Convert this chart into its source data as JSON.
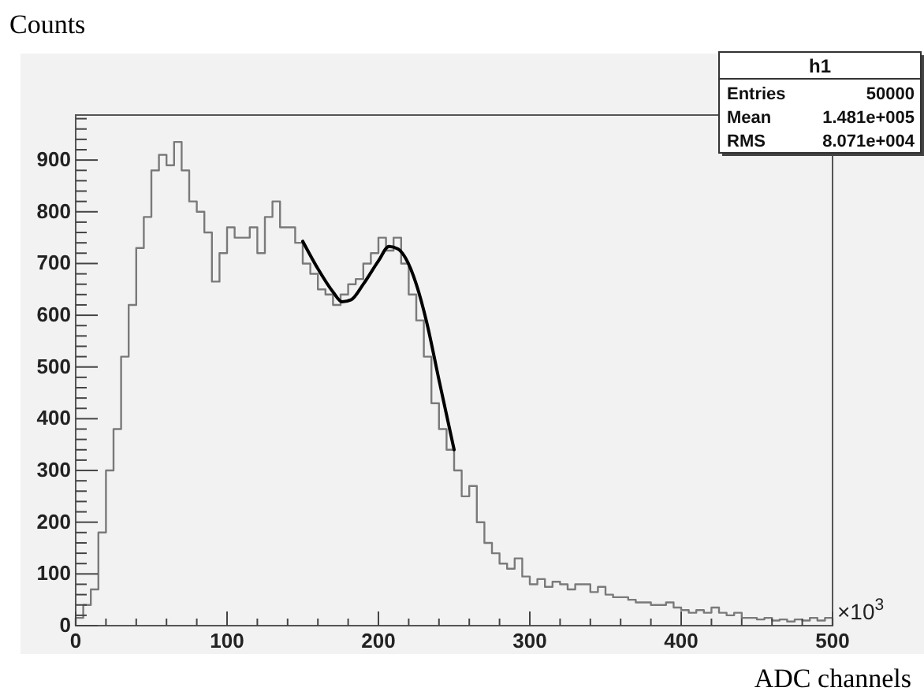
{
  "chart_data": {
    "type": "histogram",
    "ylabel": "Counts",
    "xlabel": "ADC channels",
    "bins": [
      0,
      5,
      10,
      15,
      20,
      25,
      30,
      35,
      40,
      45,
      50,
      55,
      60,
      65,
      70,
      75,
      80,
      85,
      90,
      95,
      100,
      105,
      110,
      115,
      120,
      125,
      130,
      135,
      140,
      145,
      150,
      155,
      160,
      165,
      170,
      175,
      180,
      185,
      190,
      195,
      200,
      205,
      210,
      215,
      220,
      225,
      230,
      235,
      240,
      245,
      250,
      255,
      260,
      265,
      270,
      275,
      280,
      285,
      290,
      295,
      300,
      305,
      310,
      315,
      320,
      325,
      330,
      335,
      340,
      345,
      350,
      355,
      360,
      365,
      370,
      375,
      380,
      385,
      390,
      395,
      400,
      405,
      410,
      415,
      420,
      425,
      430,
      435,
      440,
      445,
      450,
      455,
      460,
      465,
      470,
      475,
      480,
      485,
      490,
      495,
      500
    ],
    "values": [
      15,
      40,
      70,
      180,
      300,
      380,
      520,
      620,
      730,
      790,
      880,
      910,
      890,
      935,
      880,
      820,
      800,
      760,
      665,
      720,
      770,
      750,
      750,
      770,
      720,
      790,
      820,
      770,
      770,
      740,
      700,
      680,
      650,
      640,
      620,
      640,
      660,
      670,
      700,
      720,
      750,
      725,
      750,
      700,
      640,
      590,
      520,
      430,
      380,
      340,
      300,
      250,
      270,
      200,
      160,
      140,
      120,
      110,
      130,
      95,
      80,
      90,
      75,
      85,
      80,
      70,
      80,
      80,
      65,
      75,
      60,
      55,
      55,
      50,
      45,
      45,
      40,
      40,
      45,
      35,
      30,
      25,
      30,
      25,
      35,
      25,
      20,
      25,
      15,
      15,
      12,
      15,
      10,
      12,
      8,
      12,
      10,
      15,
      10,
      15
    ],
    "color": "#7a7a7a",
    "series": [
      {
        "type": "line",
        "color": "#000000",
        "x": [
          150,
          160,
          170,
          176,
          182,
          190,
          200,
          207,
          213,
          218,
          225,
          232,
          240,
          250
        ],
        "values": [
          743,
          690,
          645,
          626,
          630,
          660,
          705,
          733,
          728,
          710,
          660,
          585,
          475,
          340
        ]
      }
    ],
    "xlim": [
      0,
      500
    ],
    "xticks": [
      0,
      {
        "value": 20,
        "label": null
      },
      {
        "value": 40,
        "label": null
      },
      {
        "value": 60,
        "label": null
      },
      {
        "value": 80,
        "label": null
      },
      100,
      {
        "value": 120,
        "label": null
      },
      {
        "value": 140,
        "label": null
      },
      {
        "value": 160,
        "label": null
      },
      {
        "value": 180,
        "label": null
      },
      200,
      {
        "value": 220,
        "label": null
      },
      {
        "value": 240,
        "label": null
      },
      {
        "value": 260,
        "label": null
      },
      {
        "value": 280,
        "label": null
      },
      300,
      {
        "value": 320,
        "label": null
      },
      {
        "value": 340,
        "label": null
      },
      {
        "value": 360,
        "label": null
      },
      {
        "value": 380,
        "label": null
      },
      400,
      {
        "value": 420,
        "label": null
      },
      {
        "value": 440,
        "label": null
      },
      {
        "value": 460,
        "label": null
      },
      {
        "value": 480,
        "label": null
      },
      500
    ],
    "ylim": [
      0,
      987
    ],
    "yticks": [
      0,
      {
        "value": 20,
        "label": null
      },
      {
        "value": 40,
        "label": null
      },
      {
        "value": 60,
        "label": null
      },
      {
        "value": 80,
        "label": null
      },
      100,
      {
        "value": 120,
        "label": null
      },
      {
        "value": 140,
        "label": null
      },
      {
        "value": 160,
        "label": null
      },
      {
        "value": 180,
        "label": null
      },
      200,
      {
        "value": 220,
        "label": null
      },
      {
        "value": 240,
        "label": null
      },
      {
        "value": 260,
        "label": null
      },
      {
        "value": 280,
        "label": null
      },
      300,
      {
        "value": 320,
        "label": null
      },
      {
        "value": 340,
        "label": null
      },
      {
        "value": 360,
        "label": null
      },
      {
        "value": 380,
        "label": null
      },
      400,
      {
        "value": 420,
        "label": null
      },
      {
        "value": 440,
        "label": null
      },
      {
        "value": 460,
        "label": null
      },
      {
        "value": 480,
        "label": null
      },
      500,
      {
        "value": 520,
        "label": null
      },
      {
        "value": 540,
        "label": null
      },
      {
        "value": 560,
        "label": null
      },
      {
        "value": 580,
        "label": null
      },
      600,
      {
        "value": 620,
        "label": null
      },
      {
        "value": 640,
        "label": null
      },
      {
        "value": 660,
        "label": null
      },
      {
        "value": 680,
        "label": null
      },
      700,
      {
        "value": 720,
        "label": null
      },
      {
        "value": 740,
        "label": null
      },
      {
        "value": 760,
        "label": null
      },
      {
        "value": 780,
        "label": null
      },
      800,
      {
        "value": 820,
        "label": null
      },
      {
        "value": 840,
        "label": null
      },
      {
        "value": 860,
        "label": null
      },
      {
        "value": 880,
        "label": null
      },
      900,
      {
        "value": 920,
        "label": null
      },
      {
        "value": 940,
        "label": null
      },
      {
        "value": 960,
        "label": null
      },
      {
        "value": 980,
        "label": null
      }
    ],
    "annotations": [
      "×10$^{3}$",
      "h1",
      "Entries",
      "50000",
      "Mean",
      "1.481e+005",
      "RMS",
      "8.071e+004"
    ],
    "grid": false
  }
}
